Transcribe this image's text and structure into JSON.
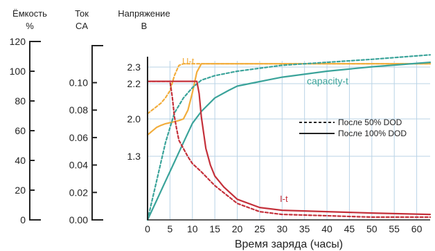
{
  "chart_data": {
    "type": "line",
    "xlabel": "Время заряда (часы)",
    "xlim": [
      0,
      63
    ],
    "x_ticks": [
      0,
      5,
      10,
      15,
      20,
      25,
      30,
      35,
      40,
      45,
      50,
      55,
      60
    ],
    "axes": {
      "capacity": {
        "title_line1": "Ёмкость",
        "title_line2": "%",
        "range": [
          0,
          120
        ],
        "ticks": [
          "0",
          "20",
          "40",
          "60",
          "80",
          "100",
          "120"
        ],
        "tick_values": [
          0,
          20,
          40,
          60,
          80,
          100,
          120
        ]
      },
      "current": {
        "title_line1": "Ток",
        "title_line2": "CA",
        "range": [
          0,
          0.13
        ],
        "ticks": [
          "0.00",
          "0.02",
          "0.04",
          "0.06",
          "0.08",
          "0.10"
        ],
        "tick_values": [
          0,
          0.02,
          0.04,
          0.06,
          0.08,
          0.1
        ]
      },
      "voltage": {
        "title_line1": "Напряжение",
        "title_line2": "B",
        "ticks": [
          "1.3",
          "2.0",
          "2.2",
          "2.3"
        ],
        "tick_values": [
          1.3,
          2.0,
          2.2,
          2.3
        ]
      }
    },
    "curve_labels": {
      "voltage": "U-t",
      "capacity": "capacity-t",
      "current": "I-t"
    },
    "legend": {
      "placement": "right",
      "entries": [
        {
          "label": "После 50% DOD",
          "style": "dashed"
        },
        {
          "label": "После 100% DOD",
          "style": "solid"
        }
      ]
    },
    "colors": {
      "voltage": "#f2ad3c",
      "capacity": "#3aa39a",
      "current": "#c4303a",
      "grid": "#b9d3e6"
    },
    "series": [
      {
        "quantity": "voltage",
        "condition": "50% DOD",
        "axis": "voltage",
        "style": "dashed",
        "x": [
          0,
          1,
          2,
          3,
          4,
          5,
          6,
          7,
          8,
          9,
          10,
          11,
          12,
          20,
          40,
          63
        ],
        "y": [
          2.03,
          2.05,
          2.07,
          2.09,
          2.12,
          2.16,
          2.25,
          2.31,
          2.32,
          2.32,
          2.32,
          2.32,
          2.32,
          2.32,
          2.32,
          2.32
        ]
      },
      {
        "quantity": "voltage",
        "condition": "100% DOD",
        "axis": "voltage",
        "style": "solid",
        "x": [
          0,
          1,
          2,
          3,
          4,
          5,
          6,
          7,
          8,
          9,
          10,
          11,
          12,
          20,
          40,
          63
        ],
        "y": [
          1.7,
          1.77,
          1.84,
          1.88,
          1.91,
          1.93,
          1.95,
          1.97,
          2.0,
          2.05,
          2.15,
          2.27,
          2.32,
          2.32,
          2.32,
          2.32
        ]
      },
      {
        "quantity": "capacity",
        "condition": "50% DOD",
        "axis": "capacity",
        "style": "dashed",
        "x": [
          0,
          2,
          4,
          6,
          8,
          10,
          12,
          15,
          20,
          25,
          30,
          40,
          50,
          63
        ],
        "y": [
          0,
          26,
          52,
          72,
          82,
          89,
          94,
          97,
          100,
          102,
          104,
          106,
          108,
          111
        ]
      },
      {
        "quantity": "capacity",
        "condition": "100% DOD",
        "axis": "capacity",
        "style": "solid",
        "x": [
          0,
          2,
          4,
          6,
          8,
          10,
          12,
          15,
          18,
          20,
          25,
          30,
          40,
          50,
          63
        ],
        "y": [
          0,
          13,
          26,
          39,
          52,
          65,
          73,
          82,
          87,
          90,
          93,
          96,
          100,
          103,
          106
        ]
      },
      {
        "quantity": "current",
        "condition": "50% DOD",
        "axis": "current",
        "style": "dashed",
        "x": [
          0,
          5,
          5.5,
          6,
          6.5,
          7,
          8,
          9,
          10,
          12,
          15,
          20,
          25,
          30,
          40,
          50,
          63
        ],
        "y": [
          0.101,
          0.101,
          0.09,
          0.075,
          0.066,
          0.058,
          0.052,
          0.046,
          0.041,
          0.035,
          0.025,
          0.012,
          0.006,
          0.004,
          0.003,
          0.002,
          0.002
        ]
      },
      {
        "quantity": "current",
        "condition": "100% DOD",
        "axis": "current",
        "style": "solid",
        "x": [
          0,
          11,
          11.5,
          12,
          13,
          14,
          15,
          17,
          20,
          25,
          30,
          40,
          50,
          63
        ],
        "y": [
          0.101,
          0.101,
          0.092,
          0.075,
          0.052,
          0.04,
          0.032,
          0.024,
          0.015,
          0.009,
          0.007,
          0.006,
          0.005,
          0.004
        ]
      }
    ]
  }
}
